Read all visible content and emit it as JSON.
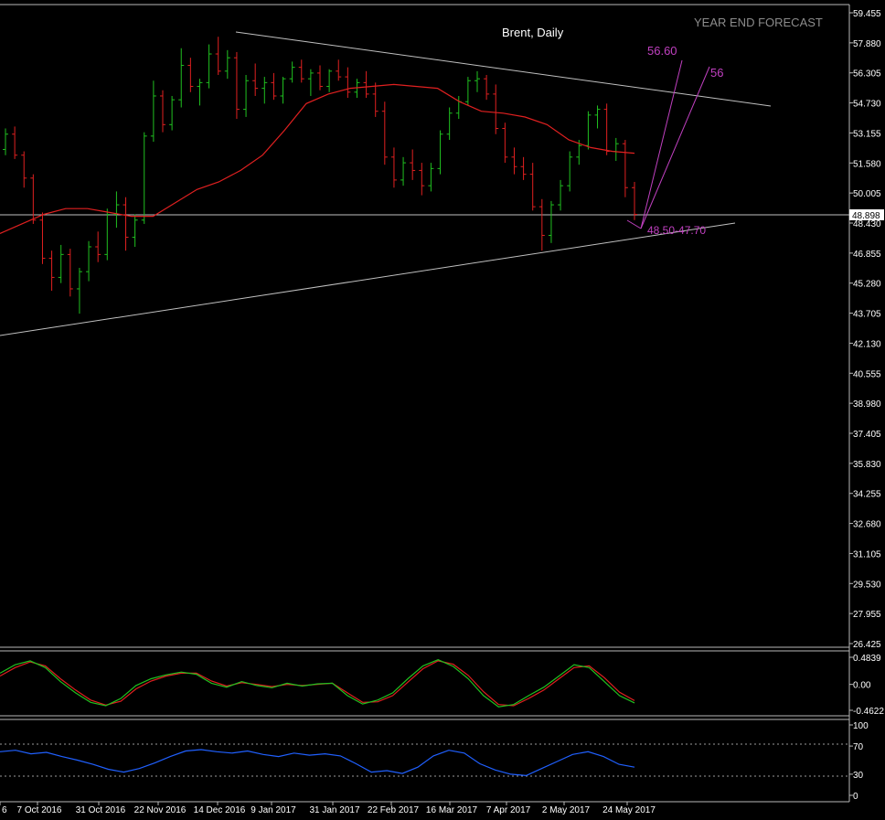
{
  "chart_data": {
    "type": "candlestick",
    "title": "Brent, Daily",
    "watermark": "YEAR END FORECAST",
    "current_price": "48.898",
    "price_axis": {
      "ylim": [
        26.425,
        59.455
      ],
      "ticks": [
        "59.455",
        "57.880",
        "56.305",
        "54.730",
        "53.155",
        "51.580",
        "50.005",
        "48.430",
        "46.855",
        "45.280",
        "43.705",
        "42.130",
        "40.555",
        "38.980",
        "37.405",
        "35.830",
        "34.255",
        "32.680",
        "31.105",
        "29.530",
        "27.955",
        "26.425"
      ]
    },
    "date_axis": [
      "6",
      "7 Oct 2016",
      "31 Oct 2016",
      "22 Nov 2016",
      "14 Dec 2016",
      "9 Jan 2017",
      "31 Jan 2017",
      "22 Feb 2017",
      "16 Mar 2017",
      "7 Apr 2017",
      "2 May 2017",
      "24 May 2017"
    ],
    "annotations": {
      "target_high": "56.60",
      "target_mid": "56",
      "support_zone": "48.50-47.70"
    },
    "ma_series": {
      "name": "",
      "values": [
        47.9,
        48.4,
        48.9,
        49.2,
        49.2,
        49.0,
        48.8,
        48.8,
        49.5,
        50.2,
        50.6,
        51.2,
        52.0,
        53.3,
        54.7,
        55.2,
        55.5,
        55.6,
        55.7,
        55.6,
        55.5,
        54.8,
        54.3,
        54.2,
        54.0,
        53.6,
        52.8,
        52.4,
        52.2,
        52.1
      ]
    },
    "oscillator": {
      "ylim": [
        -0.4622,
        0.4839
      ],
      "ticks": [
        "0.4839",
        "0.00",
        "-0.4622"
      ],
      "main": [
        0.2,
        0.35,
        0.42,
        0.3,
        0.05,
        -0.15,
        -0.32,
        -0.38,
        -0.25,
        -0.02,
        0.1,
        0.17,
        0.22,
        0.18,
        0.02,
        -0.05,
        0.05,
        -0.02,
        -0.06,
        0.02,
        -0.03,
        0.01,
        0.02,
        -0.2,
        -0.35,
        -0.28,
        -0.15,
        0.1,
        0.33,
        0.44,
        0.32,
        0.1,
        -0.2,
        -0.4,
        -0.36,
        -0.2,
        -0.05,
        0.15,
        0.35,
        0.3,
        0.05,
        -0.2,
        -0.33
      ],
      "signal": [
        0.15,
        0.3,
        0.4,
        0.33,
        0.1,
        -0.1,
        -0.28,
        -0.37,
        -0.3,
        -0.08,
        0.06,
        0.15,
        0.2,
        0.2,
        0.06,
        -0.03,
        0.03,
        0.0,
        -0.04,
        0.0,
        -0.02,
        0.0,
        0.02,
        -0.15,
        -0.32,
        -0.31,
        -0.2,
        0.04,
        0.28,
        0.42,
        0.36,
        0.16,
        -0.13,
        -0.36,
        -0.38,
        -0.25,
        -0.1,
        0.1,
        0.3,
        0.33,
        0.12,
        -0.14,
        -0.29
      ]
    },
    "rsi": {
      "ylim": [
        0,
        100
      ],
      "ticks": [
        "100",
        "70",
        "30",
        "0"
      ],
      "levels": [
        70,
        30
      ],
      "values": [
        62,
        64,
        59,
        61,
        55,
        50,
        44,
        37,
        33,
        38,
        46,
        55,
        63,
        65,
        62,
        60,
        63,
        58,
        55,
        60,
        57,
        59,
        56,
        45,
        33,
        35,
        31,
        40,
        56,
        64,
        60,
        45,
        36,
        30,
        28,
        38,
        48,
        58,
        62,
        55,
        44,
        40
      ]
    },
    "candles": [
      [
        52.3,
        53.4,
        52.0,
        53.1
      ],
      [
        53.1,
        53.5,
        51.8,
        52.0
      ],
      [
        52.0,
        52.2,
        50.3,
        50.8
      ],
      [
        50.8,
        51.0,
        48.4,
        48.6
      ],
      [
        48.6,
        49.0,
        46.3,
        46.6
      ],
      [
        46.6,
        47.0,
        44.9,
        45.6
      ],
      [
        45.6,
        47.3,
        45.3,
        46.8
      ],
      [
        46.8,
        47.1,
        44.6,
        45.0
      ],
      [
        45.0,
        46.1,
        43.7,
        45.9
      ],
      [
        45.9,
        47.5,
        45.4,
        47.2
      ],
      [
        47.2,
        48.0,
        46.4,
        46.8
      ],
      [
        46.8,
        49.2,
        46.5,
        48.9
      ],
      [
        48.9,
        50.1,
        48.2,
        49.4
      ],
      [
        49.4,
        49.8,
        47.0,
        47.7
      ],
      [
        47.7,
        48.9,
        47.2,
        48.6
      ],
      [
        48.6,
        53.2,
        48.4,
        53.0
      ],
      [
        53.0,
        55.9,
        52.7,
        55.1
      ],
      [
        55.1,
        55.4,
        53.2,
        53.6
      ],
      [
        53.6,
        55.1,
        53.3,
        54.9
      ],
      [
        54.9,
        57.6,
        54.5,
        56.7
      ],
      [
        56.7,
        57.1,
        55.3,
        55.6
      ],
      [
        55.6,
        56.0,
        54.6,
        55.8
      ],
      [
        55.8,
        57.8,
        55.5,
        57.3
      ],
      [
        57.3,
        58.2,
        56.2,
        56.4
      ],
      [
        56.4,
        57.5,
        56.0,
        57.1
      ],
      [
        57.1,
        57.4,
        53.9,
        54.4
      ],
      [
        54.4,
        56.2,
        54.0,
        55.9
      ],
      [
        55.9,
        56.8,
        55.1,
        55.5
      ],
      [
        55.5,
        56.1,
        54.7,
        55.8
      ],
      [
        55.8,
        56.3,
        54.9,
        55.1
      ],
      [
        55.1,
        56.1,
        54.7,
        56.0
      ],
      [
        56.0,
        56.9,
        55.8,
        56.6
      ],
      [
        56.6,
        57.0,
        55.8,
        56.0
      ],
      [
        56.0,
        56.5,
        55.1,
        56.3
      ],
      [
        56.3,
        56.7,
        55.4,
        55.6
      ],
      [
        55.6,
        56.5,
        55.3,
        56.4
      ],
      [
        56.4,
        57.0,
        55.9,
        56.1
      ],
      [
        56.1,
        56.6,
        55.0,
        55.3
      ],
      [
        55.3,
        56.0,
        55.0,
        55.8
      ],
      [
        55.8,
        56.4,
        55.0,
        55.2
      ],
      [
        55.2,
        55.8,
        54.0,
        54.3
      ],
      [
        54.3,
        54.8,
        51.5,
        51.9
      ],
      [
        51.9,
        52.4,
        50.3,
        50.7
      ],
      [
        50.7,
        51.9,
        50.4,
        51.6
      ],
      [
        51.6,
        52.3,
        50.7,
        51.2
      ],
      [
        51.2,
        51.6,
        49.9,
        50.4
      ],
      [
        50.4,
        51.6,
        50.1,
        51.3
      ],
      [
        51.3,
        53.3,
        51.0,
        53.1
      ],
      [
        53.1,
        54.5,
        52.8,
        54.2
      ],
      [
        54.2,
        55.1,
        53.9,
        54.8
      ],
      [
        54.8,
        56.1,
        54.6,
        55.9
      ],
      [
        55.9,
        56.4,
        55.3,
        56.0
      ],
      [
        56.0,
        56.2,
        54.9,
        55.2
      ],
      [
        55.2,
        55.7,
        53.1,
        53.4
      ],
      [
        53.4,
        53.7,
        51.6,
        51.9
      ],
      [
        51.9,
        52.4,
        51.0,
        51.4
      ],
      [
        51.4,
        51.9,
        50.7,
        51.0
      ],
      [
        51.0,
        51.6,
        49.1,
        49.3
      ],
      [
        49.3,
        49.7,
        47.0,
        47.8
      ],
      [
        47.8,
        49.6,
        47.4,
        49.4
      ],
      [
        49.4,
        50.7,
        49.1,
        50.4
      ],
      [
        50.4,
        52.2,
        50.1,
        51.9
      ],
      [
        51.9,
        52.8,
        51.5,
        52.5
      ],
      [
        52.5,
        54.3,
        52.3,
        54.1
      ],
      [
        54.1,
        54.6,
        53.4,
        54.4
      ],
      [
        54.4,
        54.7,
        52.0,
        52.2
      ],
      [
        52.2,
        52.9,
        51.7,
        52.6
      ],
      [
        52.6,
        52.8,
        49.8,
        50.3
      ],
      [
        50.3,
        50.6,
        48.6,
        48.9
      ]
    ]
  }
}
